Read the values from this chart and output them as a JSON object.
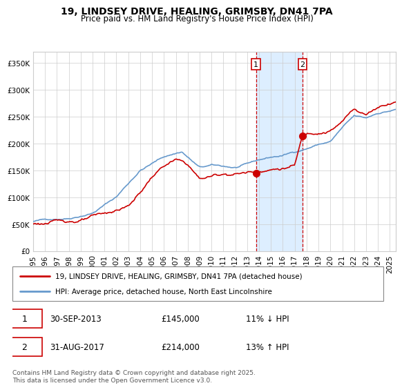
{
  "title": "19, LINDSEY DRIVE, HEALING, GRIMSBY, DN41 7PA",
  "subtitle": "Price paid vs. HM Land Registry's House Price Index (HPI)",
  "legend_line1": "19, LINDSEY DRIVE, HEALING, GRIMSBY, DN41 7PA (detached house)",
  "legend_line2": "HPI: Average price, detached house, North East Lincolnshire",
  "footnote": "Contains HM Land Registry data © Crown copyright and database right 2025.\nThis data is licensed under the Open Government Licence v3.0.",
  "sale1_date": "30-SEP-2013",
  "sale1_price": 145000,
  "sale1_hpi_diff": "11% ↓ HPI",
  "sale2_date": "31-AUG-2017",
  "sale2_price": 214000,
  "sale2_hpi_diff": "13% ↑ HPI",
  "property_color": "#cc0000",
  "hpi_color": "#6699cc",
  "highlight_color": "#ddeeff",
  "vline_color": "#cc0000",
  "ylim": [
    0,
    370000
  ],
  "yticks": [
    0,
    50000,
    100000,
    150000,
    200000,
    250000,
    300000,
    350000
  ],
  "xlim_start": 1995,
  "xlim_end": 2025.5,
  "sale1_x": 2013.75,
  "sale1_y": 145000,
  "sale2_x": 2017.667,
  "sale2_y": 214000
}
